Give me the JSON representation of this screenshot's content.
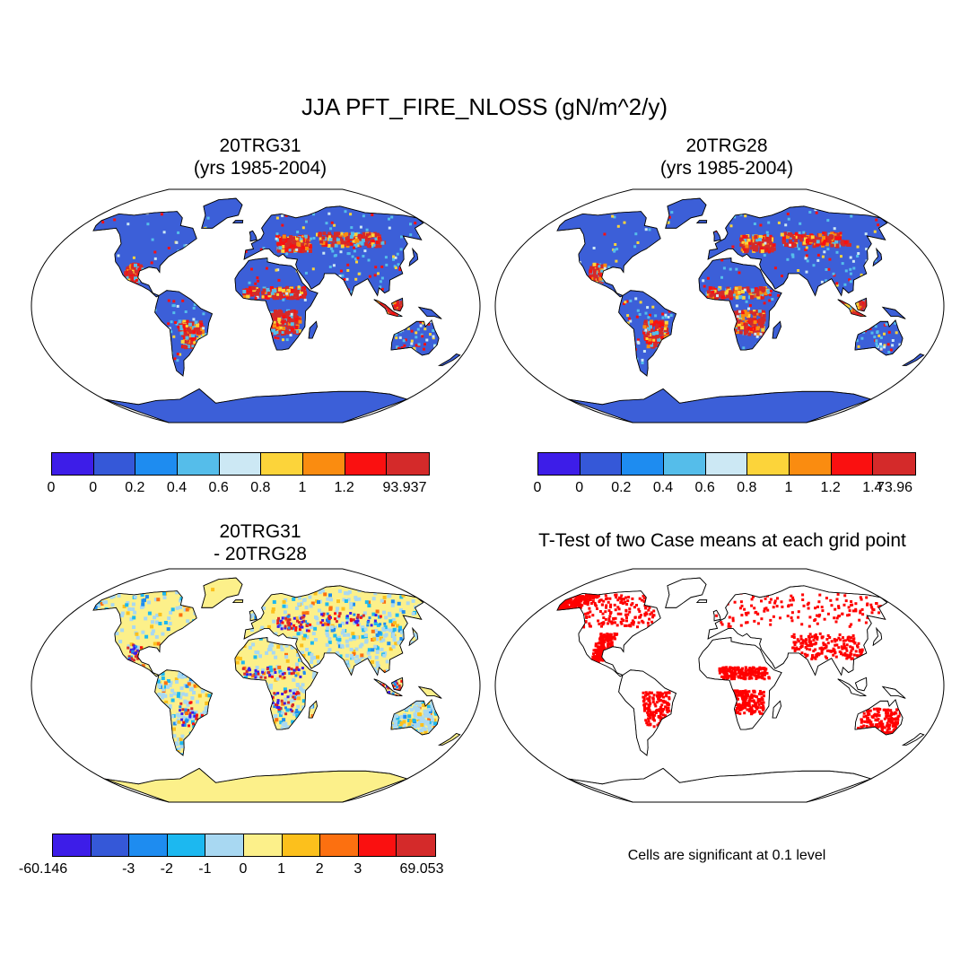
{
  "title": "JJA PFT_FIRE_NLOSS (gN/m^2/y)",
  "panels": [
    {
      "line1": "20TRG31",
      "line2": "(yrs 1985-2004)"
    },
    {
      "line1": "20TRG28",
      "line2": "(yrs 1985-2004)"
    },
    {
      "line1": "20TRG31",
      "line2": "- 20TRG28"
    },
    {
      "line1": "T-Test of two Case means at each grid point"
    }
  ],
  "colorbars": [
    {
      "colors": [
        "#3d1de8",
        "#3558d8",
        "#1e8cf0",
        "#55bdea",
        "#cce8f4",
        "#fcd43a",
        "#fa8c10",
        "#fa1010",
        "#d42a2a"
      ],
      "labels": [
        "0",
        "0",
        "0.2",
        "0.4",
        "0.6",
        "0.8",
        "1",
        "1.2",
        "93.937"
      ]
    },
    {
      "colors": [
        "#3d1de8",
        "#3558d8",
        "#1e8cf0",
        "#55bdea",
        "#cce8f4",
        "#fcd43a",
        "#fa8c10",
        "#fa1010",
        "#d42a2a"
      ],
      "labels": [
        "0",
        "0",
        "0.2",
        "0.4",
        "0.6",
        "0.8",
        "1",
        "1.2",
        "1.4",
        "73.96"
      ]
    },
    {
      "colors": [
        "#3d1de8",
        "#3558d8",
        "#1e8cf0",
        "#1cb8f0",
        "#a8d8f2",
        "#fcf08a",
        "#fcc01c",
        "#fc7010",
        "#fa1010",
        "#d42a2a"
      ],
      "labels": [
        "-60.146",
        "-3",
        "-2",
        "-1",
        "0",
        "1",
        "2",
        "3",
        "69.053"
      ]
    }
  ],
  "note": "Cells are significant at 0.1 level",
  "colors": {
    "land_mean": "#3c5fd8",
    "land_diff": "#fcf08a",
    "signif": "#ff0000"
  }
}
